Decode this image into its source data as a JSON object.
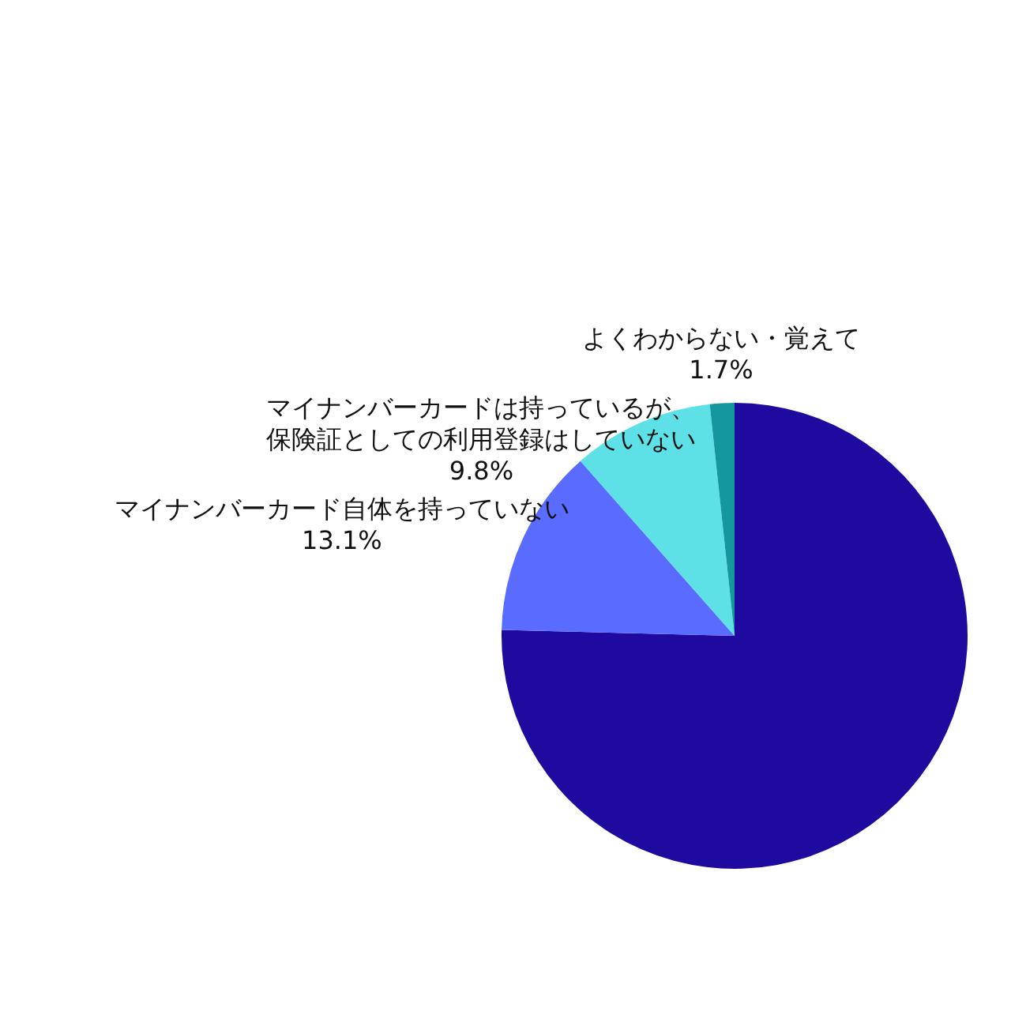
{
  "chart_data": {
    "type": "pie",
    "categories": [
      null,
      "マイナンバーカード自体を持っていない",
      "マイナンバーカードは持っているが、保険証としての利用登録はしていない",
      "よくわからない・覚えて"
    ],
    "values": [
      75.4,
      13.1,
      9.8,
      1.7
    ],
    "value_labels": [
      null,
      "13.1%",
      "9.8%",
      "1.7%"
    ],
    "colors": [
      "#1e0a9e",
      "#5a6cff",
      "#5de0e6",
      "#14979f"
    ],
    "legend": false
  }
}
